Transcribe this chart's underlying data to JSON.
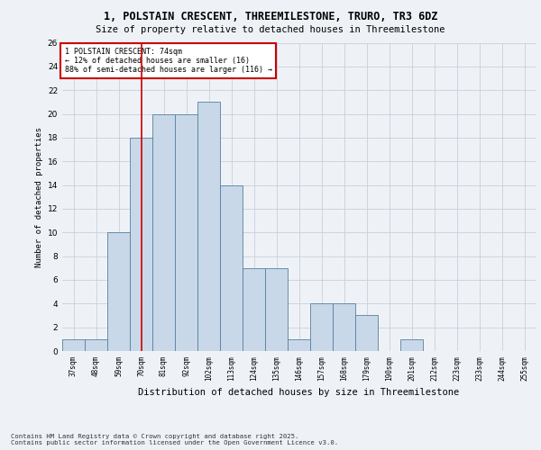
{
  "title_line1": "1, POLSTAIN CRESCENT, THREEMILESTONE, TRURO, TR3 6DZ",
  "title_line2": "Size of property relative to detached houses in Threemilestone",
  "xlabel": "Distribution of detached houses by size in Threemilestone",
  "ylabel": "Number of detached properties",
  "categories": [
    "37sqm",
    "48sqm",
    "59sqm",
    "70sqm",
    "81sqm",
    "92sqm",
    "102sqm",
    "113sqm",
    "124sqm",
    "135sqm",
    "146sqm",
    "157sqm",
    "168sqm",
    "179sqm",
    "190sqm",
    "201sqm",
    "212sqm",
    "223sqm",
    "233sqm",
    "244sqm",
    "255sqm"
  ],
  "values": [
    1,
    1,
    10,
    18,
    20,
    20,
    21,
    14,
    7,
    7,
    1,
    4,
    4,
    3,
    0,
    1,
    0,
    0,
    0,
    0,
    0
  ],
  "bar_color": "#c8d8e8",
  "bar_edge_color": "#5580a0",
  "red_line_index": 3,
  "annotation_title": "1 POLSTAIN CRESCENT: 74sqm",
  "annotation_line2": "← 12% of detached houses are smaller (16)",
  "annotation_line3": "88% of semi-detached houses are larger (116) →",
  "annotation_box_color": "#ffffff",
  "annotation_box_edge_color": "#cc0000",
  "ylim": [
    0,
    26
  ],
  "yticks": [
    0,
    2,
    4,
    6,
    8,
    10,
    12,
    14,
    16,
    18,
    20,
    22,
    24,
    26
  ],
  "footnote_line1": "Contains HM Land Registry data © Crown copyright and database right 2025.",
  "footnote_line2": "Contains public sector information licensed under the Open Government Licence v3.0.",
  "bg_color": "#eef2f7",
  "grid_color": "#c8d0dc"
}
